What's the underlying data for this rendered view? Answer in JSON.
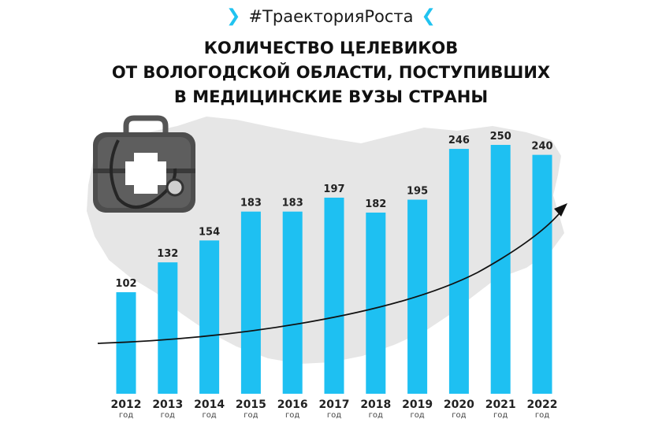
{
  "header": {
    "hashtag": "#ТраекторияРоста",
    "title_lines": [
      "КОЛИЧЕСТВО ЦЕЛЕВИКОВ",
      "ОТ ВОЛОГОДСКОЙ ОБЛАСТИ, ПОСТУПИВШИХ",
      "В МЕДИЦИНСКИЕ ВУЗЫ СТРАНЫ"
    ]
  },
  "colors": {
    "bar": "#1ec0f2",
    "accent_chevron": "#20c3f0",
    "map_background": "#e6e6e6",
    "trend_arrow": "#111111"
  },
  "icons": [
    "medical-bag-icon",
    "stethoscope-icon",
    "region-map-silhouette",
    "trend-arrow",
    "chevron-right-icon",
    "chevron-left-icon"
  ],
  "chart_data": {
    "type": "bar",
    "title": "КОЛИЧЕСТВО ЦЕЛЕВИКОВ ОТ ВОЛОГОДСКОЙ ОБЛАСТИ, ПОСТУПИВШИХ В МЕДИЦИНСКИЕ ВУЗЫ СТРАНЫ",
    "categories": [
      "2012",
      "2013",
      "2014",
      "2015",
      "2016",
      "2017",
      "2018",
      "2019",
      "2020",
      "2021",
      "2022"
    ],
    "category_sublabel": "год",
    "values": [
      102,
      132,
      154,
      183,
      183,
      197,
      182,
      195,
      246,
      250,
      240
    ],
    "data_labels": true,
    "grid": false,
    "legend": "none",
    "ylim": [
      0,
      260
    ],
    "trend_line": "rising arrow"
  }
}
